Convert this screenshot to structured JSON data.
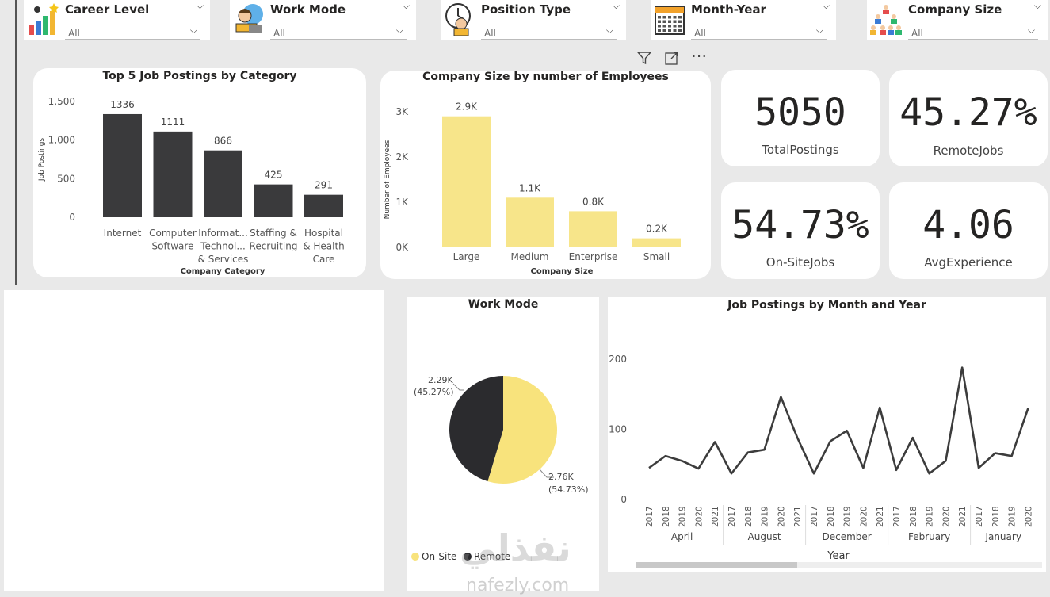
{
  "slicers": [
    {
      "label": "Career Level",
      "value": "All",
      "icon": "career-ladder-icon"
    },
    {
      "label": "Work Mode",
      "value": "All",
      "icon": "remote-worker-icon"
    },
    {
      "label": "Position Type",
      "value": "All",
      "icon": "clock-worker-icon"
    },
    {
      "label": "Month-Year",
      "value": "All",
      "icon": "calendar-icon"
    },
    {
      "label": "Company Size",
      "value": "All",
      "icon": "team-hierarchy-icon"
    }
  ],
  "visual_header": {
    "filter_icon": "filter-icon",
    "focus_icon": "focus-mode-icon",
    "more_icon": "more-options-icon",
    "more_glyph": "⋯"
  },
  "kpis": [
    {
      "value": "5050",
      "label": "TotalPostings"
    },
    {
      "value": "45.27%",
      "label": "RemoteJobs"
    },
    {
      "value": "54.73%",
      "label": "On-SiteJobs"
    },
    {
      "value": "4.06",
      "label": "AvgExperience"
    }
  ],
  "watermark": {
    "arabic": "نفذلي",
    "latin": "nafezly.com"
  },
  "colors": {
    "dark": "#3a3a3c",
    "yellow": "#f7e58a",
    "pie_dark": "#2b2b2e",
    "pie_yellow": "#f8e37c",
    "line": "#3c3c3c"
  },
  "chart_data": [
    {
      "type": "bar",
      "title": "Top 5 Job Postings by Category",
      "xlabel": "Company Category",
      "ylabel": "Job Postings",
      "ylim": [
        0,
        1500
      ],
      "yticks": [
        "0",
        "500",
        "1,000",
        "1,500"
      ],
      "categories": [
        [
          "Internet"
        ],
        [
          "Computer",
          "Software"
        ],
        [
          "Informat...",
          "Technol...",
          "& Services"
        ],
        [
          "Staffing &",
          "Recruiting"
        ],
        [
          "Hospital",
          "& Health",
          "Care"
        ]
      ],
      "values": [
        1336,
        1111,
        866,
        425,
        291
      ],
      "data_labels": [
        "1336",
        "1111",
        "866",
        "425",
        "291"
      ]
    },
    {
      "type": "bar",
      "title": "Company Size by number of Employees",
      "xlabel": "Company Size",
      "ylabel": "Number of Employees",
      "ylim": [
        0,
        3000
      ],
      "yticks": [
        "0K",
        "1K",
        "2K",
        "3K"
      ],
      "categories": [
        "Large",
        "Medium",
        "Enterprise",
        "Small"
      ],
      "values": [
        2900,
        1100,
        800,
        200
      ],
      "data_labels": [
        "2.9K",
        "1.1K",
        "0.8K",
        "0.2K"
      ]
    },
    {
      "type": "pie",
      "title": "Work Mode",
      "series": [
        {
          "name": "On-Site",
          "value": 2760,
          "label": "2.76K",
          "pct": "(54.73%)"
        },
        {
          "name": "Remote",
          "value": 2290,
          "label": "2.29K",
          "pct": "(45.27%)"
        }
      ],
      "legend": "bottom"
    },
    {
      "type": "line",
      "title": "Job Postings by Month and Year",
      "xlabel": "Year",
      "ylim": [
        0,
        200
      ],
      "yticks": [
        "0",
        "100",
        "200"
      ],
      "groups": [
        {
          "month": "April",
          "years": [
            "2017",
            "2018",
            "2019",
            "2020",
            "2021"
          ],
          "values": [
            45,
            62,
            55,
            44,
            82
          ]
        },
        {
          "month": "August",
          "years": [
            "2017",
            "2018",
            "2019",
            "2020",
            "2021"
          ],
          "values": [
            37,
            67,
            71,
            146,
            88
          ]
        },
        {
          "month": "December",
          "years": [
            "2017",
            "2018",
            "2019",
            "2020",
            "2021"
          ],
          "values": [
            37,
            83,
            98,
            45,
            131
          ]
        },
        {
          "month": "February",
          "years": [
            "2017",
            "2018",
            "2019",
            "2020",
            "2021"
          ],
          "values": [
            42,
            88,
            37,
            55,
            188
          ]
        },
        {
          "month": "January",
          "years": [
            "2017",
            "2018",
            "2019",
            "2020"
          ],
          "values": [
            45,
            66,
            62,
            130
          ]
        }
      ]
    }
  ]
}
